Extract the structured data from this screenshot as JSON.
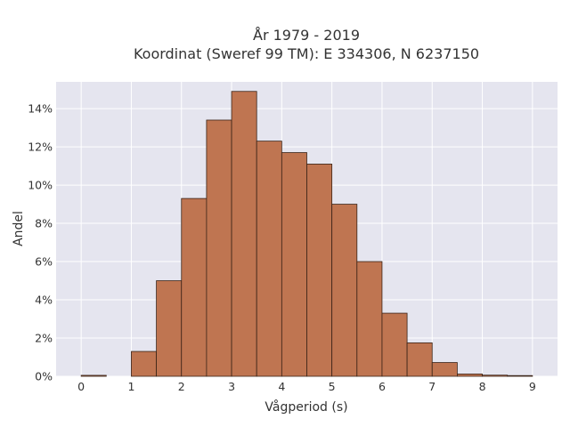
{
  "chart_data": {
    "type": "bar",
    "title_line1": "År 1979 - 2019",
    "title_line2": "Koordinat (Sweref 99 TM): E 334306, N 6237150",
    "xlabel": "Vågperiod (s)",
    "ylabel": "Andel",
    "xlim": [
      -0.5,
      9.5
    ],
    "ylim": [
      0,
      15.4
    ],
    "x_ticks": [
      0,
      1,
      2,
      3,
      4,
      5,
      6,
      7,
      8,
      9
    ],
    "y_ticks": [
      0,
      2,
      4,
      6,
      8,
      10,
      12,
      14
    ],
    "y_tick_suffix": "%",
    "bin_width": 0.5,
    "bins": [
      {
        "start": 0.0,
        "value": 0.05
      },
      {
        "start": 0.5,
        "value": 0.0
      },
      {
        "start": 1.0,
        "value": 1.3
      },
      {
        "start": 1.5,
        "value": 5.0
      },
      {
        "start": 2.0,
        "value": 9.3
      },
      {
        "start": 2.5,
        "value": 13.4
      },
      {
        "start": 3.0,
        "value": 14.9
      },
      {
        "start": 3.5,
        "value": 12.3
      },
      {
        "start": 4.0,
        "value": 11.7
      },
      {
        "start": 4.5,
        "value": 11.1
      },
      {
        "start": 5.0,
        "value": 9.0
      },
      {
        "start": 5.5,
        "value": 6.0
      },
      {
        "start": 6.0,
        "value": 3.3
      },
      {
        "start": 6.5,
        "value": 1.75
      },
      {
        "start": 7.0,
        "value": 0.72
      },
      {
        "start": 7.5,
        "value": 0.12
      },
      {
        "start": 8.0,
        "value": 0.06
      },
      {
        "start": 8.5,
        "value": 0.02
      }
    ],
    "grid": true,
    "colors": {
      "bar_fill": "#bf7551",
      "bar_edge": "#3a2317",
      "plot_bg": "#e5e5ef",
      "grid": "#ffffff"
    }
  }
}
